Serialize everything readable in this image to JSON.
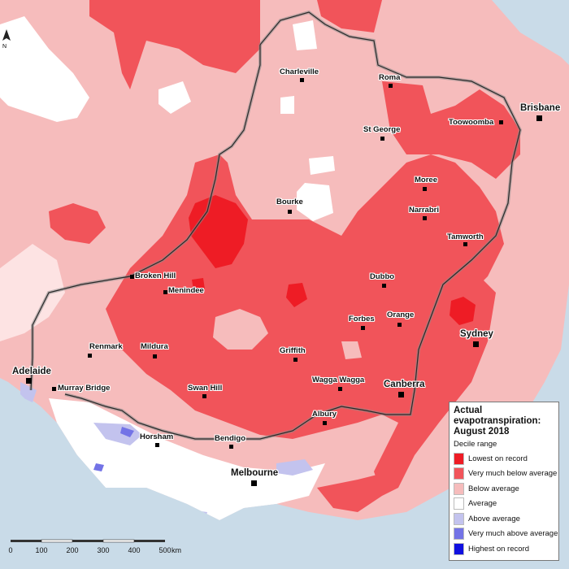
{
  "legend": {
    "title": "Actual evapotranspiration: August 2018",
    "subtitle": "Decile range",
    "items": [
      {
        "label": "Lowest on record",
        "color": "#ee1c25"
      },
      {
        "label": "Very much below average",
        "color": "#f1545a"
      },
      {
        "label": "Below average",
        "color": "#f6bcbc"
      },
      {
        "label": "Average",
        "color": "#ffffff"
      },
      {
        "label": "Above average",
        "color": "#c3c3ee"
      },
      {
        "label": "Very much above average",
        "color": "#7373e6"
      },
      {
        "label": "Highest on record",
        "color": "#1010e0"
      }
    ]
  },
  "scale": {
    "ticks": [
      "0",
      "100",
      "200",
      "300",
      "400",
      "500"
    ],
    "unit": "km"
  },
  "north_label": "N",
  "towns": [
    {
      "name": "Charleville"
    },
    {
      "name": "Roma"
    },
    {
      "name": "Brisbane"
    },
    {
      "name": "Toowoomba"
    },
    {
      "name": "St George"
    },
    {
      "name": "Moree"
    },
    {
      "name": "Bourke"
    },
    {
      "name": "Narrabri"
    },
    {
      "name": "Tamworth"
    },
    {
      "name": "Broken Hill"
    },
    {
      "name": "Menindee"
    },
    {
      "name": "Dubbo"
    },
    {
      "name": "Orange"
    },
    {
      "name": "Forbes"
    },
    {
      "name": "Sydney"
    },
    {
      "name": "Renmark"
    },
    {
      "name": "Mildura"
    },
    {
      "name": "Griffith"
    },
    {
      "name": "Adelaide"
    },
    {
      "name": "Wagga Wagga"
    },
    {
      "name": "Canberra"
    },
    {
      "name": "Swan Hill"
    },
    {
      "name": "Murray Bridge"
    },
    {
      "name": "Albury"
    },
    {
      "name": "Horsham"
    },
    {
      "name": "Bendigo"
    },
    {
      "name": "Melbourne"
    }
  ]
}
